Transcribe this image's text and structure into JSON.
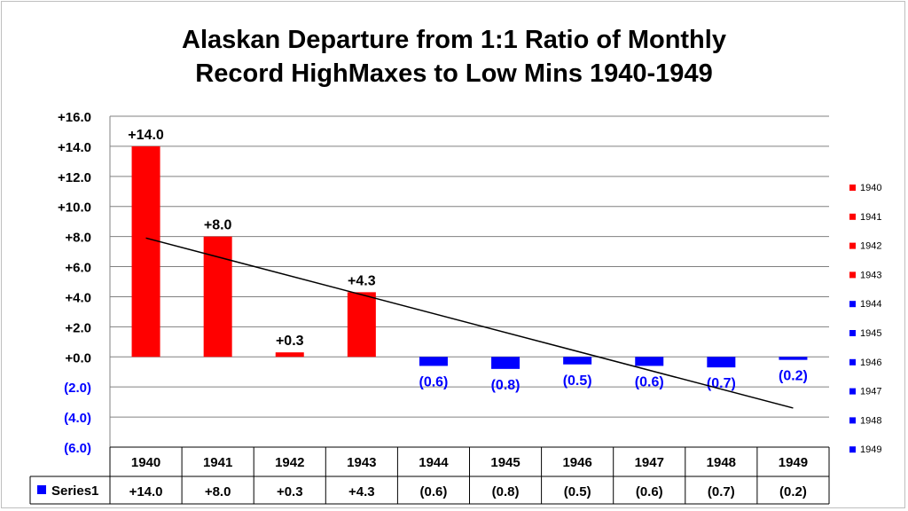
{
  "chart_data": {
    "type": "bar",
    "title_lines": [
      "Alaskan Departure from 1:1 Ratio of Monthly",
      "Record HighMaxes to Low Mins 1940-1949"
    ],
    "categories": [
      "1940",
      "1941",
      "1942",
      "1943",
      "1944",
      "1945",
      "1946",
      "1947",
      "1948",
      "1949"
    ],
    "series": [
      {
        "name": "Series1",
        "values": [
          14.0,
          8.0,
          0.3,
          4.3,
          -0.6,
          -0.8,
          -0.5,
          -0.6,
          -0.7,
          -0.2
        ],
        "value_labels": [
          "+14.0",
          "+8.0",
          "+0.3",
          "+4.3",
          "(0.6)",
          "(0.8)",
          "(0.5)",
          "(0.6)",
          "(0.7)",
          "(0.2)"
        ],
        "colors": [
          "#ff0000",
          "#ff0000",
          "#ff0000",
          "#ff0000",
          "#0000ff",
          "#0000ff",
          "#0000ff",
          "#0000ff",
          "#0000ff",
          "#0000ff"
        ]
      }
    ],
    "y_ticks": [
      16,
      14,
      12,
      10,
      8,
      6,
      4,
      2,
      0,
      -2,
      -4,
      -6
    ],
    "y_tick_labels": [
      "+16.0",
      "+14.0",
      "+12.0",
      "+10.0",
      "+8.0",
      "+6.0",
      "+4.0",
      "+2.0",
      "+0.0",
      "(2.0)",
      "(4.0)",
      "(6.0)"
    ],
    "ylim": [
      -6,
      16
    ],
    "trendline": {
      "type": "linear",
      "from": {
        "x": "1940",
        "y": 7.9
      },
      "to": {
        "x": "1949",
        "y": -3.4
      },
      "color": "#000000"
    },
    "legend": {
      "placement": "right",
      "entries": [
        "1940",
        "1941",
        "1942",
        "1943",
        "1944",
        "1945",
        "1946",
        "1947",
        "1948",
        "1949"
      ],
      "colors": [
        "#ff0000",
        "#ff0000",
        "#ff0000",
        "#ff0000",
        "#0000ff",
        "#0000ff",
        "#0000ff",
        "#0000ff",
        "#0000ff",
        "#0000ff"
      ]
    },
    "data_table": {
      "row_key": "Series1",
      "key_color": "#0000ff",
      "values": [
        "+14.0",
        "+8.0",
        "+0.3",
        "+4.3",
        "(0.6)",
        "(0.8)",
        "(0.5)",
        "(0.6)",
        "(0.7)",
        "(0.2)"
      ]
    },
    "grid": true,
    "colors": {
      "positive": "#ff0000",
      "negative": "#0000ff",
      "negative_label": "#0000ff",
      "gridline": "#808080"
    }
  }
}
